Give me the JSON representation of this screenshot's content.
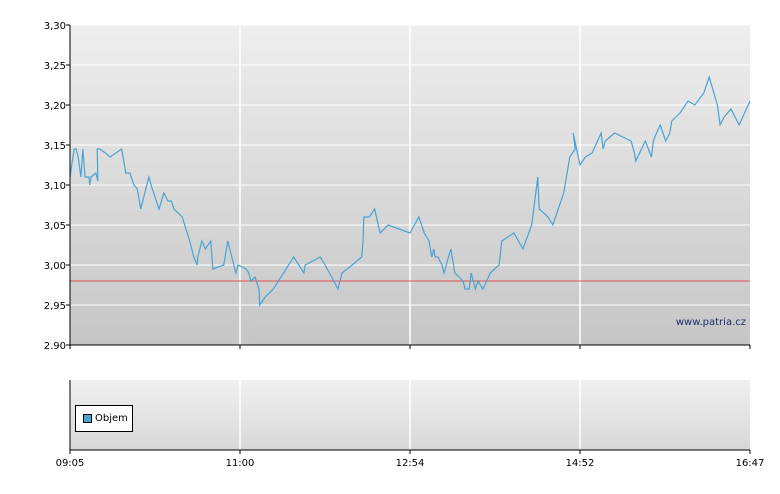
{
  "watermark": "www.patria.cz",
  "legend": {
    "label": "Objem",
    "color": "#4aa3d4"
  },
  "colors": {
    "line": "#4aa3d4",
    "reference": "#e05050",
    "grid": "#ffffff"
  },
  "chart_data": {
    "type": "line",
    "title": "",
    "xlabel": "",
    "ylabel": "",
    "ylim": [
      2.9,
      3.3
    ],
    "xlim": [
      0,
      1
    ],
    "yticks": [
      "3,30",
      "3,25",
      "3,20",
      "3,15",
      "3,10",
      "3,05",
      "3,00",
      "2,95",
      "2.90"
    ],
    "ytick_values": [
      3.3,
      3.25,
      3.2,
      3.15,
      3.1,
      3.05,
      3.0,
      2.95,
      2.9
    ],
    "xticks": [
      "09:05",
      "11:00",
      "12:54",
      "14:52",
      "16:47"
    ],
    "xtick_values": [
      0,
      0.25,
      0.5,
      0.75,
      1.0
    ],
    "grid": true,
    "reference_line": 2.98,
    "series": [
      {
        "x": [
          0.0,
          0.006,
          0.009,
          0.012,
          0.016,
          0.019,
          0.022,
          0.028,
          0.029,
          0.031,
          0.038,
          0.041,
          0.04,
          0.044,
          0.052,
          0.059,
          0.076,
          0.079,
          0.082,
          0.088,
          0.094,
          0.099,
          0.1,
          0.104,
          0.113,
          0.116,
          0.121,
          0.129,
          0.131,
          0.138,
          0.144,
          0.149,
          0.153,
          0.165,
          0.176,
          0.182,
          0.187,
          0.188,
          0.191,
          0.194,
          0.199,
          0.207,
          0.21,
          0.226,
          0.232,
          0.235,
          0.244,
          0.247,
          0.259,
          0.263,
          0.266,
          0.272,
          0.278,
          0.279,
          0.287,
          0.299,
          0.329,
          0.344,
          0.346,
          0.368,
          0.375,
          0.388,
          0.394,
          0.4,
          0.415,
          0.429,
          0.431,
          0.432,
          0.44,
          0.448,
          0.456,
          0.468,
          0.5,
          0.513,
          0.521,
          0.528,
          0.53,
          0.532,
          0.535,
          0.537,
          0.541,
          0.547,
          0.55,
          0.56,
          0.566,
          0.578,
          0.581,
          0.587,
          0.59,
          0.596,
          0.6,
          0.607,
          0.613,
          0.618,
          0.631,
          0.635,
          0.653,
          0.666,
          0.679,
          0.688,
          0.69,
          0.703,
          0.71,
          0.726,
          0.735,
          0.743,
          0.74,
          0.75,
          0.758,
          0.768,
          0.781,
          0.784,
          0.787,
          0.801,
          0.825,
          0.83,
          0.832,
          0.846,
          0.855,
          0.858,
          0.86,
          0.868,
          0.876,
          0.882,
          0.885,
          0.897,
          0.909,
          0.919,
          0.932,
          0.94,
          0.952,
          0.956,
          0.962,
          0.972,
          0.984,
          1.0
        ],
        "y": [
          3.11,
          3.145,
          3.145,
          3.135,
          3.11,
          3.145,
          3.11,
          3.11,
          3.1,
          3.11,
          3.115,
          3.105,
          3.145,
          3.145,
          3.14,
          3.135,
          3.145,
          3.13,
          3.115,
          3.115,
          3.1,
          3.095,
          3.09,
          3.07,
          3.1,
          3.11,
          3.095,
          3.075,
          3.07,
          3.09,
          3.08,
          3.08,
          3.07,
          3.06,
          3.03,
          3.01,
          3.0,
          3.01,
          3.02,
          3.03,
          3.02,
          3.03,
          2.995,
          3.0,
          3.03,
          3.02,
          2.99,
          3.0,
          2.995,
          2.99,
          2.98,
          2.985,
          2.97,
          2.95,
          2.96,
          2.97,
          3.01,
          2.99,
          3.0,
          3.01,
          3.0,
          2.98,
          2.97,
          2.99,
          3.0,
          3.01,
          3.03,
          3.06,
          3.06,
          3.07,
          3.04,
          3.05,
          3.04,
          3.06,
          3.04,
          3.03,
          3.02,
          3.01,
          3.02,
          3.01,
          3.01,
          3.0,
          2.99,
          3.02,
          2.99,
          2.98,
          2.97,
          2.97,
          2.99,
          2.97,
          2.98,
          2.97,
          2.98,
          2.99,
          3.0,
          3.03,
          3.04,
          3.02,
          3.05,
          3.11,
          3.07,
          3.06,
          3.05,
          3.09,
          3.135,
          3.145,
          3.165,
          3.125,
          3.135,
          3.14,
          3.165,
          3.145,
          3.155,
          3.165,
          3.155,
          3.14,
          3.13,
          3.155,
          3.135,
          3.155,
          3.16,
          3.175,
          3.155,
          3.165,
          3.18,
          3.19,
          3.205,
          3.2,
          3.215,
          3.235,
          3.2,
          3.175,
          3.185,
          3.195,
          3.175,
          3.205
        ]
      }
    ]
  }
}
